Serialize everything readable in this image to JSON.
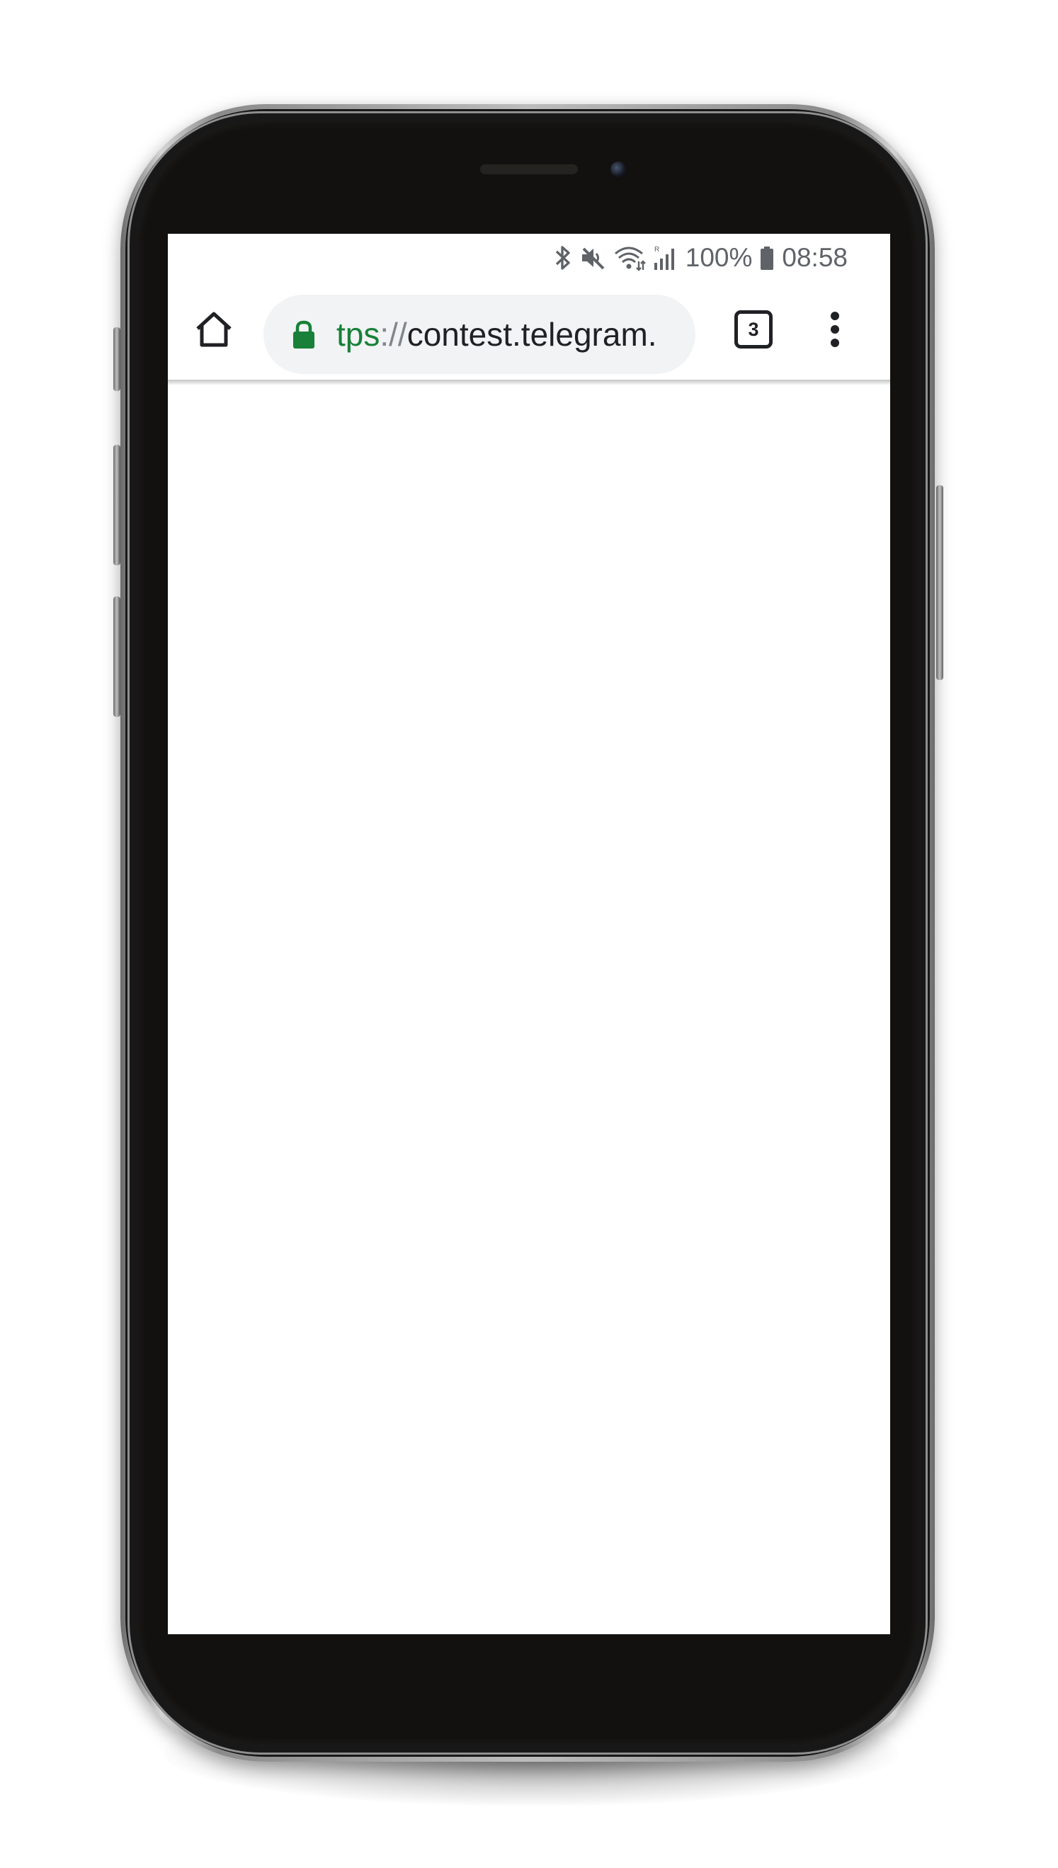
{
  "status_bar": {
    "icons": [
      "bluetooth-icon",
      "mute-icon",
      "wifi-icon",
      "signal-icon",
      "battery-icon"
    ],
    "battery_percent": "100%",
    "time": "08:58"
  },
  "browser": {
    "url_scheme_visible": "tps",
    "url_separator": "://",
    "url_host_visible": "contest.telegram.",
    "secure": true,
    "tab_count": "3",
    "colors": {
      "secure_green": "#188038",
      "omnibox_bg": "#f1f3f4",
      "text": "#202124"
    }
  },
  "device": {
    "frame": "phone",
    "bezel_color": "#121110"
  }
}
